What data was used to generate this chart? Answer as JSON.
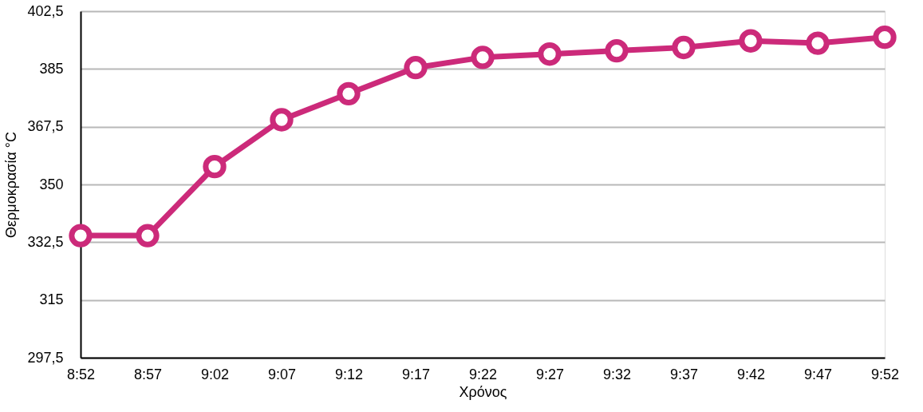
{
  "chart_data": {
    "type": "line",
    "xlabel": "Χρόνος",
    "ylabel": "Θερμοκρασία °C",
    "categories": [
      "8:52",
      "8:57",
      "9:02",
      "9:07",
      "9:12",
      "9:17",
      "9:22",
      "9:27",
      "9:32",
      "9:37",
      "9:42",
      "9:47",
      "9:52"
    ],
    "series": [
      {
        "color": "#cc2a7a",
        "values": [
          334.5,
          334.5,
          355.4,
          369.6,
          377.5,
          385.4,
          388.5,
          389.5,
          390.5,
          391.5,
          393.5,
          392.8,
          394.6
        ]
      }
    ],
    "ylim": [
      297.5,
      402.5
    ],
    "yticks": [
      {
        "value": 297.5,
        "label": "297,5"
      },
      315,
      {
        "value": 332.5,
        "label": "332,5"
      },
      350,
      {
        "value": 367.5,
        "label": "367,5"
      },
      385,
      {
        "value": 402.5,
        "label": "402,5"
      }
    ],
    "grid": "y",
    "marker": "circle",
    "line_style": "solid"
  }
}
